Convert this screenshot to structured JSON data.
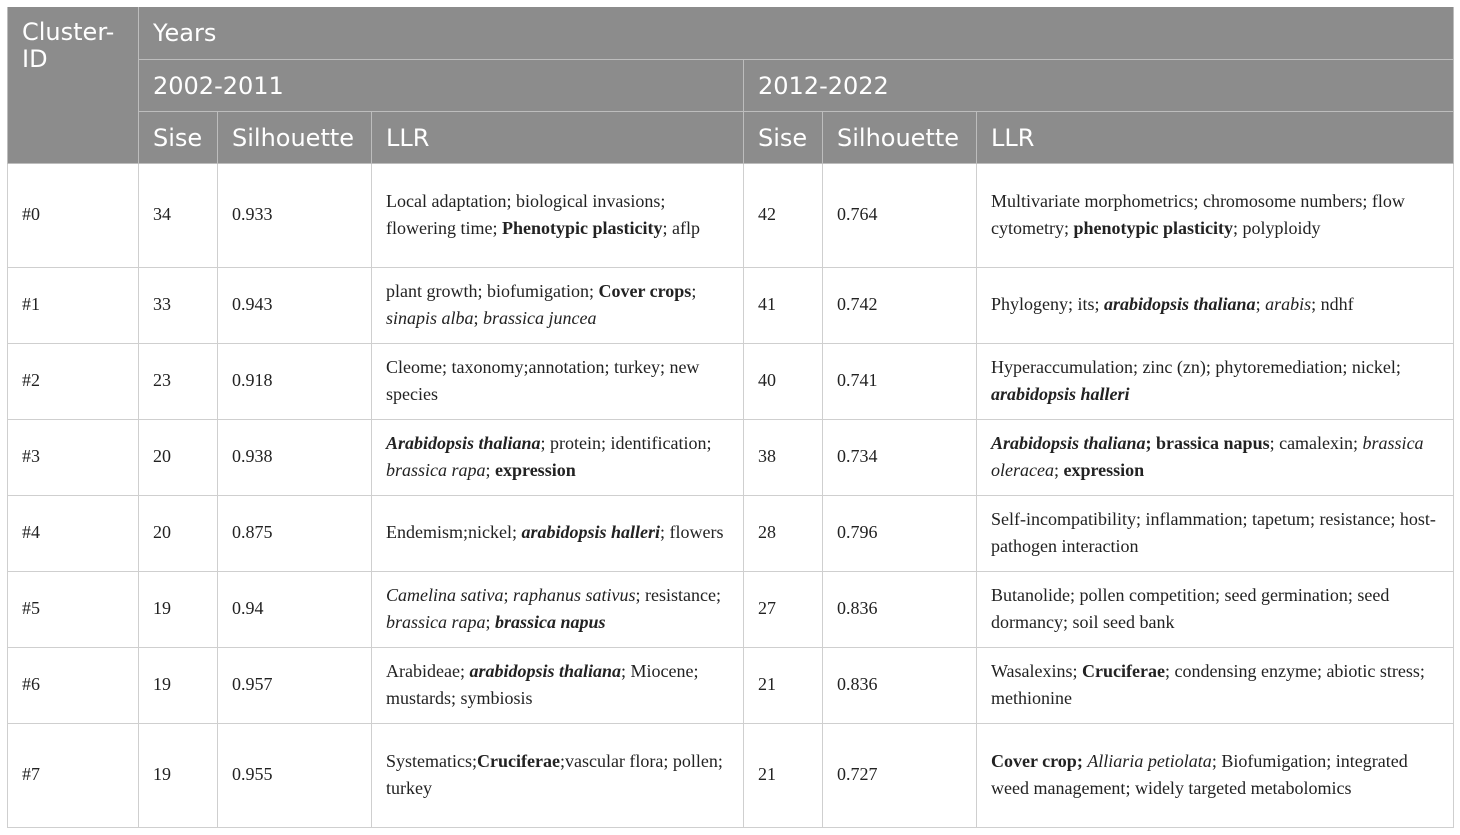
{
  "header": {
    "cluster_id": "Cluster-ID",
    "years": "Years",
    "period_1": "2002-2011",
    "period_2": "2012-2022",
    "sise": "Sise",
    "silhouette": "Silhouette",
    "llr": "LLR"
  },
  "rows": [
    {
      "id": "#0",
      "size_1": "34",
      "sil_1": "0.933",
      "llr_1": [
        [
          "n",
          "Local adaptation; biological invasions; flowering time; "
        ],
        [
          "b",
          "Phenotypic plasticity"
        ],
        [
          "n",
          "; aflp"
        ]
      ],
      "size_2": "42",
      "sil_2": "0.764",
      "llr_2": [
        [
          "n",
          "Multivariate morphometrics; chromosome numbers; flow cytometry; "
        ],
        [
          "b",
          "phenotypic plasticity"
        ],
        [
          "n",
          "; polyploidy"
        ]
      ]
    },
    {
      "id": "#1",
      "size_1": "33",
      "sil_1": "0.943",
      "llr_1": [
        [
          "n",
          "plant growth; biofumigation; "
        ],
        [
          "b",
          "Cover crops"
        ],
        [
          "n",
          "; "
        ],
        [
          "i",
          "sinapis alba"
        ],
        [
          "n",
          "; "
        ],
        [
          "i",
          "brassica juncea"
        ]
      ],
      "size_2": "41",
      "sil_2": "0.742",
      "llr_2": [
        [
          "n",
          "Phylogeny; its; "
        ],
        [
          "bi",
          "arabidopsis thaliana"
        ],
        [
          "n",
          "; "
        ],
        [
          "i",
          "arabis"
        ],
        [
          "n",
          "; ndhf"
        ]
      ]
    },
    {
      "id": "#2",
      "size_1": "23",
      "sil_1": "0.918",
      "llr_1": [
        [
          "n",
          "Cleome; taxonomy;annotation; turkey; new species"
        ]
      ],
      "size_2": "40",
      "sil_2": "0.741",
      "llr_2": [
        [
          "n",
          "Hyperaccumulation; zinc (zn); phytoremediation; nickel; "
        ],
        [
          "bi",
          "arabidopsis halleri"
        ]
      ]
    },
    {
      "id": "#3",
      "size_1": "20",
      "sil_1": "0.938",
      "llr_1": [
        [
          "bi",
          "Arabidopsis thaliana"
        ],
        [
          "n",
          "; protein; identification; "
        ],
        [
          "i",
          "brassica rapa"
        ],
        [
          "n",
          "; "
        ],
        [
          "b",
          "expression"
        ]
      ],
      "size_2": "38",
      "sil_2": "0.734",
      "llr_2": [
        [
          "bi",
          "Arabidopsis thaliana"
        ],
        [
          "b",
          "; brassica napus"
        ],
        [
          "n",
          "; camalexin; "
        ],
        [
          "i",
          "brassica oleracea"
        ],
        [
          "n",
          "; "
        ],
        [
          "b",
          "expression"
        ]
      ]
    },
    {
      "id": "#4",
      "size_1": "20",
      "sil_1": "0.875",
      "llr_1": [
        [
          "n",
          "Endemism;nickel; "
        ],
        [
          "bi",
          "arabidopsis halleri"
        ],
        [
          "n",
          "; flowers"
        ]
      ],
      "size_2": "28",
      "sil_2": "0.796",
      "llr_2": [
        [
          "n",
          "Self-incompatibility; inflammation; tapetum; resistance; host-pathogen interaction"
        ]
      ]
    },
    {
      "id": "#5",
      "size_1": "19",
      "sil_1": "0.94",
      "llr_1": [
        [
          "i",
          "Camelina sativa"
        ],
        [
          "n",
          "; "
        ],
        [
          "i",
          "raphanus sativus"
        ],
        [
          "n",
          "; resistance; "
        ],
        [
          "i",
          "brassica rapa"
        ],
        [
          "n",
          "; "
        ],
        [
          "bi",
          "brassica napus"
        ]
      ],
      "size_2": "27",
      "sil_2": "0.836",
      "llr_2": [
        [
          "n",
          "Butanolide; pollen competition; seed germination; seed dormancy; soil seed bank"
        ]
      ]
    },
    {
      "id": "#6",
      "size_1": "19",
      "sil_1": "0.957",
      "llr_1": [
        [
          "n",
          "Arabideae; "
        ],
        [
          "bi",
          "arabidopsis thaliana"
        ],
        [
          "n",
          "; Miocene; mustards; symbiosis"
        ]
      ],
      "size_2": "21",
      "sil_2": "0.836",
      "llr_2": [
        [
          "n",
          "Wasalexins; "
        ],
        [
          "b",
          "Cruciferae"
        ],
        [
          "n",
          "; condensing enzyme; abiotic stress; methionine"
        ]
      ]
    },
    {
      "id": "#7",
      "size_1": "19",
      "sil_1": "0.955",
      "llr_1": [
        [
          "n",
          "Systematics;"
        ],
        [
          "b",
          "Cruciferae"
        ],
        [
          "n",
          ";vascular flora; pollen; turkey"
        ]
      ],
      "size_2": "21",
      "sil_2": "0.727",
      "llr_2": [
        [
          "b",
          "Cover crop;"
        ],
        [
          "n",
          " "
        ],
        [
          "i",
          "Alliaria petiolata"
        ],
        [
          "n",
          "; Biofumigation; integrated weed management; widely targeted metabolomics"
        ]
      ]
    }
  ]
}
